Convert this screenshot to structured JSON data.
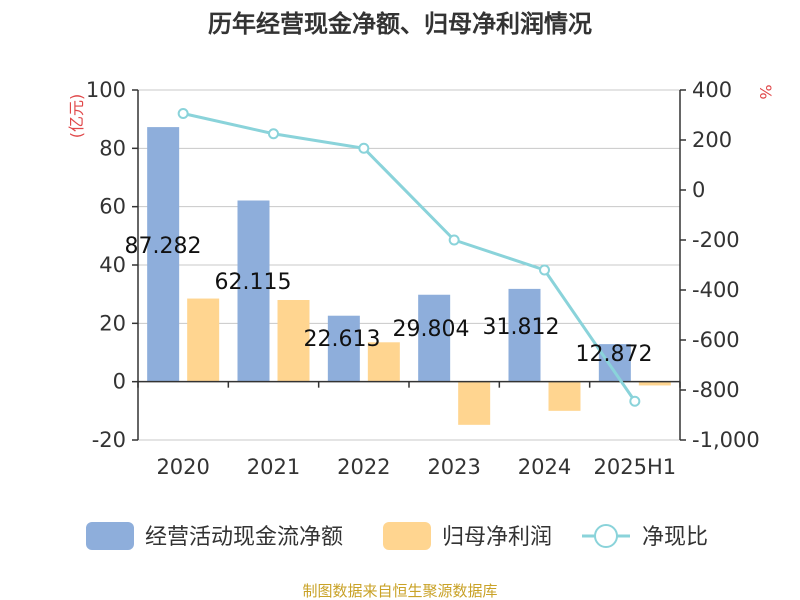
{
  "title": "历年经营现金净额、归母净利润情况",
  "source_note": "制图数据来自恒生聚源数据库",
  "colors": {
    "op_cash_bar": "#8EAEDB",
    "net_profit_bar": "#FFD590",
    "ratio_line": "#8AD3DA",
    "axis_unit_red": "#E0484A",
    "grid": "#C8C8C8",
    "axis": "#333333",
    "text": "#333333",
    "source": "#C9A227"
  },
  "chart_data": {
    "type": "bar",
    "categories": [
      "2020",
      "2021",
      "2022",
      "2023",
      "2024",
      "2025H1"
    ],
    "y_left": {
      "unit": "(亿元)",
      "ylim": [
        -20,
        100
      ],
      "ticks": [
        -20,
        0,
        20,
        40,
        60,
        80,
        100
      ]
    },
    "y_right": {
      "unit": "%",
      "ylim": [
        -1000,
        400
      ],
      "ticks": [
        -1000,
        -800,
        -600,
        -400,
        -200,
        0,
        200,
        400
      ],
      "tick_labels": [
        "-1,000",
        "-800",
        "-600",
        "-400",
        "-200",
        "0",
        "200",
        "400"
      ]
    },
    "series": [
      {
        "name": "经营活动现金流净额",
        "type": "bar",
        "axis": "left",
        "values": [
          87.282,
          62.115,
          22.613,
          29.804,
          31.812,
          12.872
        ],
        "labels": [
          "87.282",
          "62.115",
          "22.613",
          "29.804",
          "31.812",
          "12.872"
        ]
      },
      {
        "name": "归母净利润",
        "type": "bar",
        "axis": "left",
        "values": [
          28.5,
          28.0,
          13.5,
          -14.8,
          -10.0,
          -1.3
        ]
      },
      {
        "name": "净现比",
        "type": "line",
        "axis": "right",
        "values": [
          306,
          225,
          167,
          -200,
          -320,
          -845
        ]
      }
    ],
    "grid": true,
    "legend": "bottom"
  }
}
